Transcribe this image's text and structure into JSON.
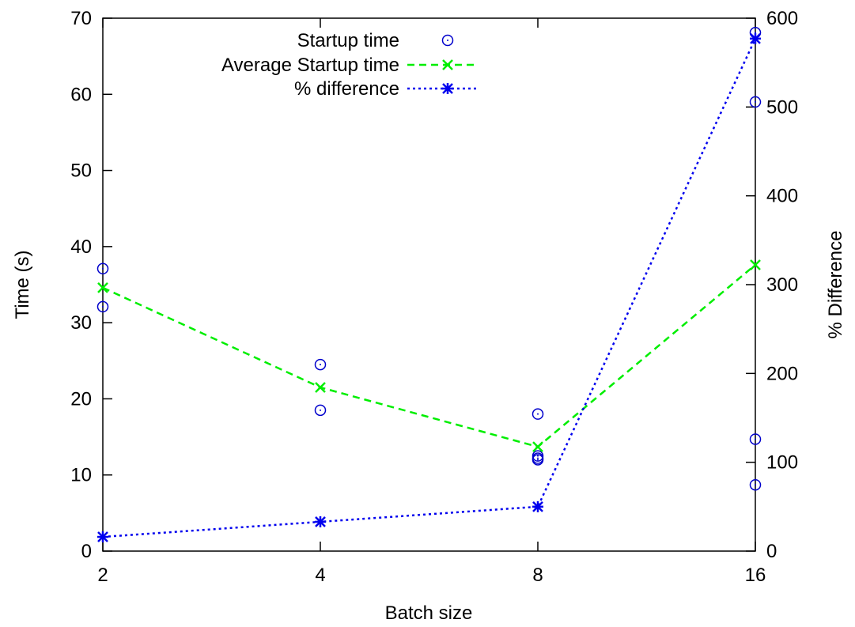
{
  "chart_data": {
    "type": "line",
    "title": "",
    "xlabel": "Batch size",
    "ylabel": "Time (s)",
    "y2label": "% Difference",
    "categories": [
      "2",
      "4",
      "8",
      "16"
    ],
    "ylim": [
      0,
      70
    ],
    "y2lim": [
      0,
      600
    ],
    "yticks": [
      "0",
      "10",
      "20",
      "30",
      "40",
      "50",
      "60",
      "70"
    ],
    "y2ticks": [
      "0",
      "100",
      "200",
      "300",
      "400",
      "500",
      "600"
    ],
    "grid": false,
    "legend_position": "top-center",
    "series": [
      {
        "name": "Startup time",
        "kind": "scatter",
        "axis": "left",
        "marker": "circle-dot",
        "color": "#0000cc",
        "points": [
          {
            "x": "2",
            "y": 37.1
          },
          {
            "x": "2",
            "y": 32.1
          },
          {
            "x": "4",
            "y": 24.5
          },
          {
            "x": "4",
            "y": 18.5
          },
          {
            "x": "8",
            "y": 18.0
          },
          {
            "x": "8",
            "y": 12.5
          },
          {
            "x": "8",
            "y": 12.2
          },
          {
            "x": "8",
            "y": 12.0
          },
          {
            "x": "16",
            "y": 68.1
          },
          {
            "x": "16",
            "y": 59.0
          },
          {
            "x": "16",
            "y": 14.7
          },
          {
            "x": "16",
            "y": 8.7
          }
        ]
      },
      {
        "name": "Average Startup time",
        "kind": "line",
        "axis": "left",
        "marker": "x",
        "dash": "dashed",
        "color": "#00ee00",
        "values": [
          34.6,
          21.5,
          13.7,
          37.6
        ]
      },
      {
        "name": "% difference",
        "kind": "line",
        "axis": "right",
        "marker": "star",
        "dash": "dotted",
        "color": "#0000ee",
        "values": [
          16,
          33,
          50,
          577
        ]
      }
    ]
  }
}
